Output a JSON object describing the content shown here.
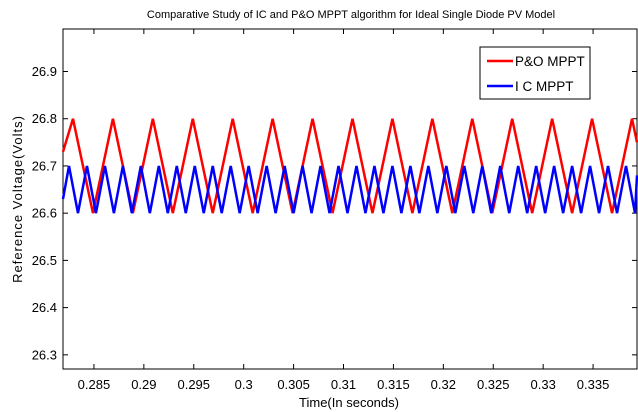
{
  "chart_data": {
    "type": "line",
    "title": "Comparative Study of IC and P&O MPPT algorithm for Ideal Single Diode PV Model",
    "xlabel": "Time(In seconds)",
    "ylabel": "Reference Voltage(Volts)",
    "xlim": [
      0.2819,
      0.3394
    ],
    "ylim": [
      26.27,
      26.99
    ],
    "xticks": [
      0.285,
      0.29,
      0.295,
      0.3,
      0.305,
      0.31,
      0.315,
      0.32,
      0.325,
      0.33,
      0.335
    ],
    "xtick_labels": [
      "0.285",
      "0.29",
      "0.295",
      "0.3",
      "0.305",
      "0.31",
      "0.315",
      "0.32",
      "0.325",
      "0.33",
      "0.335"
    ],
    "yticks": [
      26.3,
      26.4,
      26.5,
      26.6,
      26.7,
      26.8,
      26.9
    ],
    "ytick_labels": [
      "26.3",
      "26.4",
      "26.5",
      "26.6",
      "26.7",
      "26.8",
      "26.9"
    ],
    "grid": false,
    "legend_position": "top-right",
    "series": [
      {
        "name": "P&O MPPT",
        "color": "#ff0000",
        "x": [
          0.2819,
          0.2829,
          0.2849,
          0.2869,
          0.2889,
          0.2909,
          0.2929,
          0.2949,
          0.2969,
          0.2989,
          0.3009,
          0.3029,
          0.3049,
          0.3069,
          0.3089,
          0.3109,
          0.3129,
          0.3149,
          0.3169,
          0.3189,
          0.3209,
          0.3229,
          0.3249,
          0.3269,
          0.3289,
          0.3309,
          0.3329,
          0.3349,
          0.3369,
          0.3389,
          0.3394
        ],
        "y": [
          26.73,
          26.8,
          26.6,
          26.8,
          26.6,
          26.8,
          26.6,
          26.8,
          26.6,
          26.8,
          26.6,
          26.8,
          26.6,
          26.8,
          26.6,
          26.8,
          26.6,
          26.8,
          26.6,
          26.8,
          26.6,
          26.8,
          26.6,
          26.8,
          26.6,
          26.8,
          26.6,
          26.8,
          26.6,
          26.8,
          26.75
        ]
      },
      {
        "name": "I C MPPT",
        "color": "#0000ff",
        "x": [
          0.2819,
          0.2825,
          0.2834,
          0.2843,
          0.2852,
          0.2861,
          0.287,
          0.2879,
          0.2888,
          0.2897,
          0.2906,
          0.2915,
          0.2924,
          0.2933,
          0.2942,
          0.2951,
          0.296,
          0.2969,
          0.2978,
          0.2987,
          0.2996,
          0.3005,
          0.3014,
          0.3023,
          0.3032,
          0.3041,
          0.305,
          0.3059,
          0.3068,
          0.3077,
          0.3086,
          0.3095,
          0.3104,
          0.3113,
          0.3122,
          0.3131,
          0.314,
          0.3149,
          0.3158,
          0.3167,
          0.3176,
          0.3185,
          0.3194,
          0.3203,
          0.3212,
          0.3221,
          0.323,
          0.3239,
          0.3248,
          0.3257,
          0.3266,
          0.3275,
          0.3284,
          0.3293,
          0.3302,
          0.3311,
          0.332,
          0.3329,
          0.3338,
          0.3347,
          0.3356,
          0.3365,
          0.3374,
          0.3383,
          0.3392,
          0.3394
        ],
        "y": [
          26.63,
          26.7,
          26.6,
          26.7,
          26.6,
          26.7,
          26.6,
          26.7,
          26.6,
          26.7,
          26.6,
          26.7,
          26.6,
          26.7,
          26.6,
          26.7,
          26.6,
          26.7,
          26.6,
          26.7,
          26.6,
          26.7,
          26.6,
          26.7,
          26.6,
          26.7,
          26.6,
          26.7,
          26.6,
          26.7,
          26.6,
          26.7,
          26.6,
          26.7,
          26.6,
          26.7,
          26.6,
          26.7,
          26.6,
          26.7,
          26.6,
          26.7,
          26.6,
          26.7,
          26.6,
          26.7,
          26.6,
          26.7,
          26.6,
          26.7,
          26.6,
          26.7,
          26.6,
          26.7,
          26.6,
          26.7,
          26.6,
          26.7,
          26.6,
          26.7,
          26.6,
          26.7,
          26.6,
          26.7,
          26.6,
          26.68
        ]
      }
    ]
  }
}
